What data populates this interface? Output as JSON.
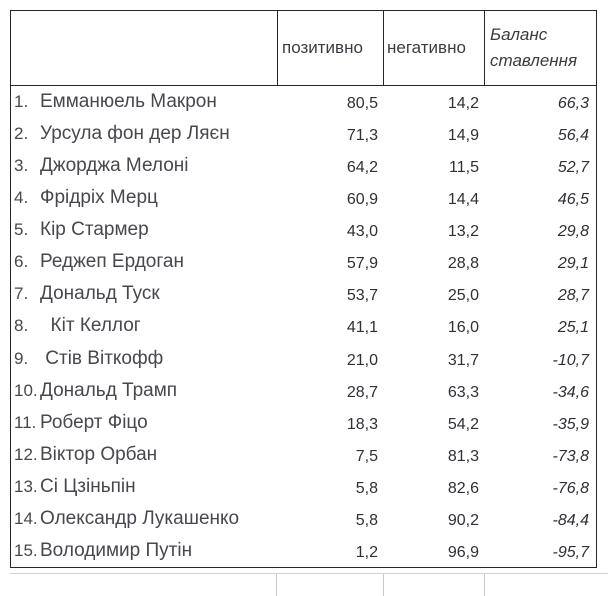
{
  "table": {
    "title": "",
    "columns": {
      "name": "",
      "positive": "позитивно",
      "negative": "негативно",
      "balance": "Баланс ставлення"
    },
    "rows": [
      {
        "num": "1.",
        "name": "Емманюель Макрон",
        "positive": "80,5",
        "negative": "14,2",
        "balance": "66,3"
      },
      {
        "num": "2.",
        "name": "Урсула фон дер Ляєн",
        "positive": "71,3",
        "negative": "14,9",
        "balance": "56,4"
      },
      {
        "num": "3.",
        "name": "Джорджа Мелоні",
        "positive": "64,2",
        "negative": "11,5",
        "balance": "52,7"
      },
      {
        "num": "4.",
        "name": "Фрідріх Мерц",
        "positive": "60,9",
        "negative": "14,4",
        "balance": "46,5"
      },
      {
        "num": "5.",
        "name": "Кір Стармер",
        "positive": "43,0",
        "negative": "13,2",
        "balance": "29,8"
      },
      {
        "num": "6.",
        "name": "Реджеп Ердоган",
        "positive": "57,9",
        "negative": "28,8",
        "balance": "29,1"
      },
      {
        "num": "7.",
        "name": "Дональд Туск",
        "positive": "53,7",
        "negative": "25,0",
        "balance": "28,7"
      },
      {
        "num": "8.",
        "name": "  Кіт Келлог",
        "positive": "41,1",
        "negative": "16,0",
        "balance": "25,1"
      },
      {
        "num": "9.",
        "name": " Стів Віткофф",
        "positive": "21,0",
        "negative": "31,7",
        "balance": "-10,7"
      },
      {
        "num": "10.",
        "name": "Дональд Трамп",
        "positive": "28,7",
        "negative": "63,3",
        "balance": "-34,6"
      },
      {
        "num": "11.",
        "name": "Роберт Фіцо",
        "positive": "18,3",
        "negative": "54,2",
        "balance": "-35,9"
      },
      {
        "num": "12.",
        "name": "Віктор Орбан",
        "positive": "7,5",
        "negative": "81,3",
        "balance": "-73,8"
      },
      {
        "num": "13.",
        "name": "Сі Цзіньпін",
        "positive": "5,8",
        "negative": "82,6",
        "balance": "-76,8"
      },
      {
        "num": "14.",
        "name": "Олександр Лукашенко",
        "positive": "5,8",
        "negative": "90,2",
        "balance": "-84,4"
      },
      {
        "num": "15.",
        "name": "Володимир Путін",
        "positive": "1,2",
        "negative": "96,9",
        "balance": "-95,7"
      }
    ]
  },
  "colors": {
    "table_border": "#262626",
    "name_text": "#47474d",
    "value_text": "#2f2f35",
    "gridline": "#c9c9c9",
    "background": "#ffffff"
  }
}
